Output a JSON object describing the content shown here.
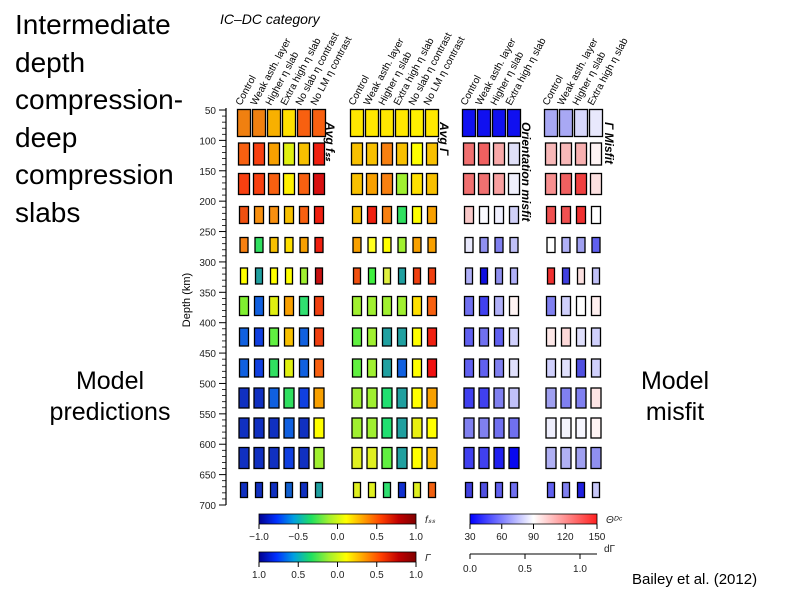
{
  "slide": {
    "title_lines": [
      "Intermediate",
      "depth",
      "compression-",
      "deep",
      "compression",
      "slabs"
    ],
    "left_caption_lines": [
      "Model",
      "predictions"
    ],
    "right_caption_lines": [
      "Model",
      "misfit"
    ],
    "citation": "Bailey et al. (2012)"
  },
  "chart_data": {
    "type": "heatmap",
    "title": "IC–DC category",
    "ylabel": "Depth (km)",
    "ylim": [
      50,
      700
    ],
    "y_ticks": [
      "50",
      "100",
      "150",
      "200",
      "250",
      "300",
      "350",
      "400",
      "450",
      "500",
      "550",
      "600",
      "650",
      "700"
    ],
    "panels": [
      {
        "side_label": "Avg fₛₛ",
        "columns": [
          "Control",
          "Weak asth. layer",
          "Higher η slab",
          "Extra high η slab",
          "No slab η contrast",
          "No LM η contrast"
        ],
        "cell_colors": [
          [
            "#f08010",
            "#f08010",
            "#f8b000",
            "#ffe000",
            "#f86010",
            "#f86010"
          ],
          [
            "#f86010",
            "#f84010",
            "#f8a000",
            "#e0f010",
            "#f8c000",
            "#f02010"
          ],
          [
            "#f84010",
            "#f84010",
            "#f86010",
            "#fff000",
            "#f86010",
            "#d81010"
          ],
          [
            "#f05010",
            "#f89010",
            "#f89010",
            "#f8c000",
            "#f86010",
            "#f02010"
          ],
          [
            "#f88010",
            "#30e060",
            "#f8c000",
            "#ffe000",
            "#f8a000",
            "#f02010"
          ],
          [
            "#ffff00",
            "#20a0a0",
            "#ffff00",
            "#ffff00",
            "#a0f030",
            "#c81010"
          ],
          [
            "#80f030",
            "#1060e0",
            "#e0f010",
            "#f8a000",
            "#30e070",
            "#f04010"
          ],
          [
            "#1060e0",
            "#1040e0",
            "#60f040",
            "#f8c000",
            "#1060e0",
            "#f04010"
          ],
          [
            "#1060e0",
            "#1040e0",
            "#30e060",
            "#e0f010",
            "#1060e0",
            "#f86010"
          ],
          [
            "#1030c0",
            "#1030c0",
            "#1060e0",
            "#30e060",
            "#1040e0",
            "#f8a000"
          ],
          [
            "#1030c0",
            "#1030c0",
            "#1030c0",
            "#1060e0",
            "#1030c0",
            "#ffff00"
          ],
          [
            "#1030c0",
            "#1030c0",
            "#1030c0",
            "#1040e0",
            "#1030c0",
            "#a0f030"
          ],
          [
            "#1030c0",
            "#1030c0",
            "#1030c0",
            "#1060d0",
            "#1030c0",
            "#20a0a0"
          ]
        ]
      },
      {
        "side_label": "Avg Γ",
        "columns": [
          "Control",
          "Weak asth. layer",
          "Higher η slab",
          "Extra high η slab",
          "No slab η contrast",
          "No LM η contrast"
        ],
        "cell_colors": [
          [
            "#ffe800",
            "#ffe800",
            "#ffe800",
            "#ffe800",
            "#fff000",
            "#ffe800"
          ],
          [
            "#f8c000",
            "#f8c000",
            "#f88010",
            "#f8c000",
            "#ffff00",
            "#f8c000"
          ],
          [
            "#f8c000",
            "#f8a000",
            "#f88010",
            "#a0f030",
            "#ffe000",
            "#f8c000"
          ],
          [
            "#f8c000",
            "#f02010",
            "#f88010",
            "#30e060",
            "#ffff00",
            "#f8a000"
          ],
          [
            "#f8a000",
            "#ffff20",
            "#ffff00",
            "#a0f030",
            "#f8a000",
            "#f8a000"
          ],
          [
            "#f05010",
            "#40f040",
            "#e0f040",
            "#20a0a0",
            "#f04010",
            "#f04010"
          ],
          [
            "#a0f030",
            "#a0f030",
            "#a0f030",
            "#a0f030",
            "#ffe000",
            "#f86010"
          ],
          [
            "#60f040",
            "#a0f030",
            "#20a0a0",
            "#20a0a0",
            "#ffff00",
            "#f02010"
          ],
          [
            "#60f040",
            "#a0f030",
            "#20a0a0",
            "#1060e0",
            "#ffff00",
            "#f01010"
          ],
          [
            "#a0f030",
            "#a0f030",
            "#20e070",
            "#20a0a0",
            "#ffff00",
            "#f8a000"
          ],
          [
            "#a0f030",
            "#a0f030",
            "#20e070",
            "#20a0a0",
            "#e8f010",
            "#ffff00"
          ],
          [
            "#e0f020",
            "#e0f020",
            "#60f040",
            "#20a0a0",
            "#ffff00",
            "#f8c000"
          ],
          [
            "#e0f020",
            "#e0f020",
            "#30e070",
            "#1030d0",
            "#e0f020",
            "#f06010"
          ]
        ]
      },
      {
        "side_label": "Orientation misfit",
        "columns": [
          "Control",
          "Weak asth. layer",
          "Higher η slab",
          "Extra high η slab"
        ],
        "cell_colors": [
          [
            "#1010f0",
            "#1010f0",
            "#1010f0",
            "#1010f0"
          ],
          [
            "#f07070",
            "#f06060",
            "#f8a8a8",
            "#e0e0f8"
          ],
          [
            "#f07070",
            "#f07070",
            "#f8a0a0",
            "#f0f0fc"
          ],
          [
            "#f8c8c8",
            "#fafaff",
            "#f0f0ff",
            "#d0d0f8"
          ],
          [
            "#e8e8fc",
            "#9090f0",
            "#8080f0",
            "#c0c0f8"
          ],
          [
            "#b0b0f8",
            "#1010e0",
            "#9090f0",
            "#b0b0f8"
          ],
          [
            "#7070f0",
            "#4040f0",
            "#b0b0f8",
            "#fff4f4"
          ],
          [
            "#6060f0",
            "#7070f0",
            "#6060f0",
            "#d0d0fc"
          ],
          [
            "#6060f0",
            "#6060f0",
            "#8080f0",
            "#e0e0fc"
          ],
          [
            "#4040f0",
            "#4040f0",
            "#8080f0",
            "#c0c0f8"
          ],
          [
            "#8080f0",
            "#8080f0",
            "#7070f0",
            "#7070f0"
          ],
          [
            "#4040f0",
            "#4040f0",
            "#2020f0",
            "#0808f0"
          ],
          [
            "#4040e0",
            "#5050e0",
            "#6060f0",
            "#7070f0"
          ]
        ]
      },
      {
        "side_label": "Γ Misfit",
        "columns": [
          "Control",
          "Weak asth. layer",
          "Higher η slab",
          "Extra high η slab"
        ],
        "cell_colors": [
          [
            "#a8a8f4",
            "#a8a8f4",
            "#d8d8fc",
            "#e8e8fc"
          ],
          [
            "#f8b8b8",
            "#f8b8b8",
            "#f8b0b0",
            "#fff4f4"
          ],
          [
            "#f89090",
            "#f06060",
            "#f04040",
            "#fce0e0"
          ],
          [
            "#f05050",
            "#f05050",
            "#f03030",
            "#ffffff"
          ],
          [
            "#ffffff",
            "#b0b0f8",
            "#a0a0f0",
            "#6060f0"
          ],
          [
            "#f03030",
            "#4040e0",
            "#fce0e0",
            "#c0c0f8"
          ],
          [
            "#8080f0",
            "#d0d0fc",
            "#ffffff",
            "#fff0f0"
          ],
          [
            "#fde8e8",
            "#fcd8d8",
            "#e0e0fc",
            "#d0d0fc"
          ],
          [
            "#d0d0fc",
            "#e0e0fc",
            "#5050e0",
            "#d0d0fc"
          ],
          [
            "#a0a0f0",
            "#8080f0",
            "#8080f0",
            "#fde4e4"
          ],
          [
            "#eeeefc",
            "#f4f4fc",
            "#f6f6fe",
            "#fff4f4"
          ],
          [
            "#b0b0f4",
            "#b0b0f4",
            "#a0a0f0",
            "#9090f0"
          ],
          [
            "#6060f0",
            "#8080f0",
            "#2020e0",
            "#c8c8f8"
          ]
        ]
      }
    ],
    "colorbars": [
      {
        "label": "fₛₛ",
        "ticks": [
          "−1.0",
          "−0.5",
          "0.0",
          "0.5",
          "1.0"
        ],
        "colors": [
          "#00008f",
          "#0030ff",
          "#00a0e0",
          "#20e060",
          "#a0f030",
          "#ffff00",
          "#ffa000",
          "#ff4000",
          "#c00000",
          "#800000"
        ]
      },
      {
        "label": "Γ",
        "ticks": [
          "1.0",
          "0.5",
          "0.0",
          "0.5",
          "1.0"
        ],
        "colors": [
          "#00008f",
          "#0030ff",
          "#00a0e0",
          "#20e060",
          "#a0f030",
          "#ffff00",
          "#ffa000",
          "#ff4000",
          "#c00000",
          "#800000"
        ]
      },
      {
        "label": "Θᴰᶜ",
        "ticks": [
          "30",
          "60",
          "90",
          "120",
          "150"
        ],
        "colors": [
          "#0000ff",
          "#ffffff",
          "#ff2020"
        ]
      },
      {
        "label": "dΓ",
        "ticks": [
          "0.0",
          "0.5",
          "1.0"
        ]
      }
    ]
  }
}
